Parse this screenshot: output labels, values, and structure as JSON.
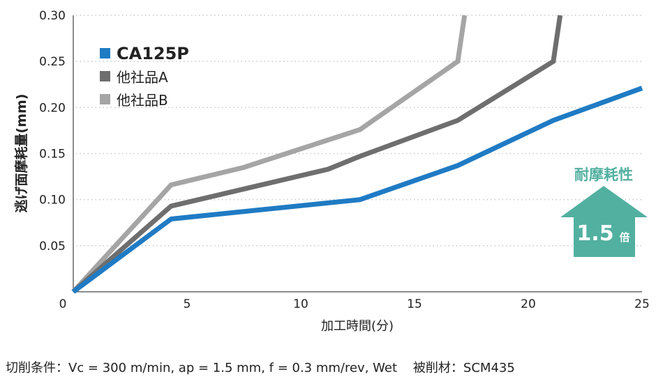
{
  "chart_data": {
    "type": "line",
    "xlabel": "加工時間(分)",
    "ylabel": "逃げ面摩耗量(mm)",
    "xlim": [
      0,
      25
    ],
    "ylim": [
      0,
      0.3
    ],
    "xticks": [
      "0",
      "5",
      "10",
      "15",
      "20",
      "25"
    ],
    "yticks": [
      "0.05",
      "0.10",
      "0.15",
      "0.20",
      "0.25",
      "0.30"
    ],
    "grid": "horizontal dotted",
    "legend_position": "top-left",
    "series": [
      {
        "name": "CA125P",
        "color": "#1f7bc4",
        "x": [
          0,
          4.3,
          12.6,
          16.9,
          21.1,
          25
        ],
        "y": [
          0,
          0.079,
          0.1,
          0.137,
          0.186,
          0.221
        ]
      },
      {
        "name": "他社品A",
        "color": "#6e6e6e",
        "x": [
          0,
          4.3,
          11.2,
          12.6,
          16.9,
          21.1,
          21.4
        ],
        "y": [
          0,
          0.093,
          0.133,
          0.147,
          0.186,
          0.25,
          0.3
        ]
      },
      {
        "name": "他社品B",
        "color": "#a5a5a5",
        "x": [
          0,
          4.3,
          7.5,
          12.6,
          16.9,
          17.2
        ],
        "y": [
          0,
          0.116,
          0.135,
          0.176,
          0.25,
          0.3
        ]
      }
    ],
    "annotation": {
      "title": "耐摩耗性",
      "value": "1.5",
      "unit": "倍",
      "color": "#52b0a0"
    }
  },
  "conditions": "切削条件：Vc = 300 m/min, ap = 1.5 mm, f = 0.3 mm/rev, Wet    被削材：SCM435"
}
